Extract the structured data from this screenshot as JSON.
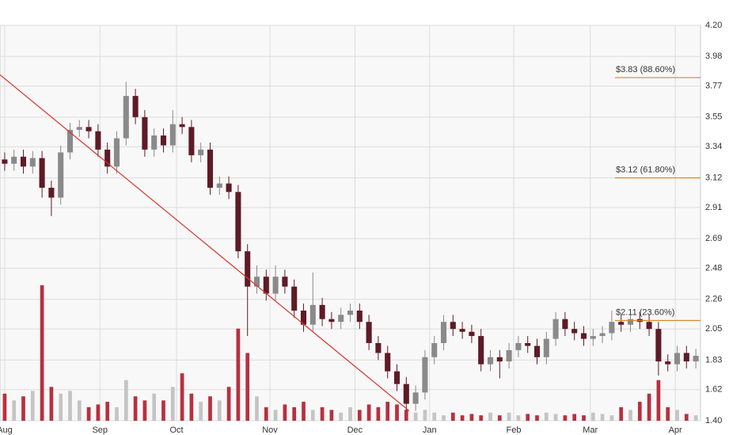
{
  "chart_data": {
    "type": "candlestick",
    "x": [
      0,
      1,
      2,
      3,
      4,
      5,
      6,
      7,
      8,
      9,
      10,
      11,
      12,
      13,
      14,
      15,
      16,
      17,
      18,
      19,
      20,
      21,
      22,
      23,
      24,
      25,
      26,
      27,
      28,
      29,
      30,
      31,
      32,
      33,
      34,
      35,
      36,
      37,
      38,
      39,
      40,
      41,
      42,
      43,
      44,
      45,
      46,
      47,
      48,
      49,
      50,
      51,
      52,
      53,
      54,
      55,
      56,
      57,
      58,
      59,
      60,
      61,
      62,
      63,
      64,
      65,
      66,
      67,
      68,
      69,
      70,
      71,
      72,
      73,
      74
    ],
    "open": [
      3.25,
      3.22,
      3.27,
      3.2,
      3.26,
      3.05,
      2.98,
      3.3,
      3.46,
      3.48,
      3.45,
      3.32,
      3.2,
      3.4,
      3.7,
      3.55,
      3.32,
      3.42,
      3.35,
      3.5,
      3.48,
      3.28,
      3.32,
      3.05,
      3.08,
      3.02,
      2.6,
      2.35,
      2.42,
      2.3,
      2.42,
      2.35,
      2.18,
      2.08,
      2.22,
      2.12,
      2.1,
      2.15,
      2.18,
      2.1,
      1.95,
      1.88,
      1.75,
      1.66,
      1.52,
      1.6,
      1.85,
      1.95,
      2.1,
      2.05,
      2.03,
      2.0,
      1.8,
      1.85,
      1.82,
      1.9,
      1.95,
      1.93,
      1.85,
      1.98,
      2.12,
      2.05,
      2.02,
      1.98,
      2.0,
      2.02,
      2.1,
      2.08,
      2.12,
      2.1,
      2.05,
      1.82,
      1.8,
      1.88,
      1.82
    ],
    "high": [
      3.3,
      3.32,
      3.32,
      3.31,
      3.31,
      3.1,
      3.35,
      3.51,
      3.53,
      3.53,
      3.5,
      3.37,
      3.45,
      3.8,
      3.75,
      3.6,
      3.47,
      3.47,
      3.6,
      3.55,
      3.53,
      3.37,
      3.37,
      3.13,
      3.13,
      3.07,
      2.65,
      2.5,
      2.47,
      2.5,
      2.47,
      2.4,
      2.23,
      2.45,
      2.27,
      2.17,
      2.2,
      2.23,
      2.23,
      2.15,
      2.0,
      1.93,
      1.8,
      1.71,
      1.65,
      1.9,
      2.0,
      2.15,
      2.15,
      2.1,
      2.08,
      2.05,
      1.9,
      1.9,
      1.95,
      2.0,
      2.0,
      1.98,
      2.03,
      2.17,
      2.17,
      2.1,
      2.07,
      2.05,
      2.07,
      2.18,
      2.15,
      2.17,
      2.17,
      2.15,
      2.1,
      1.87,
      1.93,
      1.93,
      1.91
    ],
    "low": [
      3.17,
      3.17,
      3.15,
      3.15,
      2.98,
      2.85,
      2.93,
      3.25,
      3.41,
      3.4,
      3.27,
      3.15,
      3.15,
      3.35,
      3.5,
      3.27,
      3.27,
      3.3,
      3.3,
      3.43,
      3.23,
      3.23,
      3.0,
      3.0,
      2.97,
      2.55,
      2.0,
      2.3,
      2.25,
      2.25,
      2.3,
      2.13,
      2.03,
      2.03,
      2.07,
      2.05,
      2.05,
      2.1,
      2.05,
      1.9,
      1.83,
      1.7,
      1.61,
      1.47,
      1.47,
      1.55,
      1.8,
      1.9,
      2.0,
      1.98,
      1.95,
      1.75,
      1.75,
      1.7,
      1.77,
      1.85,
      1.88,
      1.8,
      1.8,
      1.93,
      2.0,
      1.97,
      1.93,
      1.93,
      1.95,
      1.97,
      2.03,
      2.03,
      2.05,
      2.0,
      1.72,
      1.75,
      1.75,
      1.77,
      1.77
    ],
    "close": [
      3.22,
      3.27,
      3.2,
      3.26,
      3.05,
      2.98,
      3.3,
      3.46,
      3.48,
      3.45,
      3.32,
      3.2,
      3.4,
      3.7,
      3.55,
      3.32,
      3.42,
      3.35,
      3.5,
      3.48,
      3.28,
      3.32,
      3.05,
      3.08,
      3.02,
      2.6,
      2.35,
      2.42,
      2.3,
      2.42,
      2.35,
      2.18,
      2.08,
      2.22,
      2.12,
      2.1,
      2.15,
      2.18,
      2.1,
      1.95,
      1.88,
      1.75,
      1.66,
      1.52,
      1.6,
      1.85,
      1.95,
      2.1,
      2.05,
      2.03,
      2.0,
      1.8,
      1.85,
      1.82,
      1.9,
      1.95,
      1.93,
      1.85,
      1.98,
      2.12,
      2.05,
      2.02,
      1.98,
      2.0,
      2.02,
      2.1,
      2.08,
      2.12,
      2.1,
      2.05,
      1.82,
      1.8,
      1.88,
      1.82,
      1.86
    ],
    "volume": [
      20,
      15,
      18,
      22,
      100,
      25,
      20,
      22,
      15,
      10,
      12,
      14,
      10,
      30,
      18,
      15,
      20,
      15,
      25,
      35,
      20,
      14,
      18,
      15,
      25,
      68,
      50,
      18,
      10,
      8,
      12,
      10,
      14,
      8,
      10,
      8,
      6,
      10,
      8,
      12,
      10,
      14,
      12,
      8,
      6,
      8,
      6,
      4,
      6,
      4,
      5,
      4,
      6,
      4,
      6,
      4,
      5,
      4,
      6,
      5,
      4,
      5,
      4,
      6,
      5,
      4,
      10,
      8,
      14,
      20,
      30,
      10,
      8,
      5,
      4
    ],
    "up_color": "#8a8a8a",
    "down_color": "#5e1b26",
    "volume_up_color": "#c4c4c4",
    "volume_down_color": "#b8303f",
    "xlim": [
      -0.5,
      74.5
    ],
    "xticks": [
      {
        "value": 0,
        "label": "Aug"
      },
      {
        "value": 10.2,
        "label": "Sep"
      },
      {
        "value": 18.4,
        "label": "Oct"
      },
      {
        "value": 28.4,
        "label": "Nov"
      },
      {
        "value": 37.5,
        "label": "Dec"
      },
      {
        "value": 45.5,
        "label": "Jan"
      },
      {
        "value": 54.5,
        "label": "Feb"
      },
      {
        "value": 62.7,
        "label": "Mar"
      },
      {
        "value": 71.8,
        "label": "Apr"
      }
    ],
    "ylim": [
      1.4,
      4.2
    ],
    "yticks": [
      {
        "value": 1.4,
        "label": "1.40"
      },
      1.62,
      1.83,
      2.05,
      2.26,
      2.48,
      2.69,
      2.91,
      3.12,
      3.34,
      3.55,
      3.77,
      3.98,
      {
        "value": 4.2,
        "label": "4.20"
      }
    ],
    "grid": true,
    "trendline": {
      "x": [
        -0.5,
        43.3
      ],
      "y": [
        3.85,
        1.47
      ],
      "color": "#d9342b"
    },
    "levels": [
      {
        "value": 3.83,
        "label": "$3.83 (88.60%)"
      },
      {
        "value": 3.12,
        "label": "$3.12 (61.80%)"
      },
      {
        "value": 2.11,
        "label": "$2.11 (23.60%)"
      }
    ],
    "level_color": "#d98a2b"
  }
}
